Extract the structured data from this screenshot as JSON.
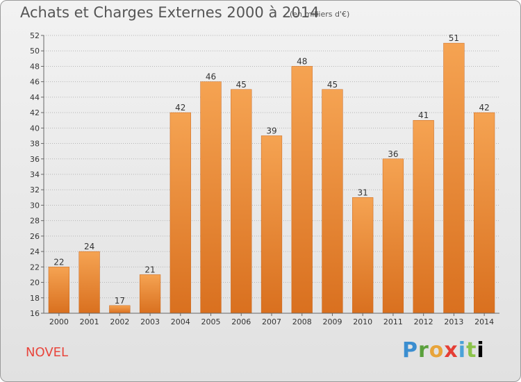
{
  "title": "Achats et Charges Externes 2000 à 2014",
  "unit_note": "(en milliers d'€)",
  "commune": "NOVEL",
  "logo_letters": [
    "P",
    "r",
    "o",
    "x",
    "i",
    "t",
    "i"
  ],
  "chart_data": {
    "type": "bar",
    "categories": [
      "2000",
      "2001",
      "2002",
      "2003",
      "2004",
      "2005",
      "2006",
      "2007",
      "2008",
      "2009",
      "2010",
      "2011",
      "2012",
      "2013",
      "2014"
    ],
    "values": [
      22,
      24,
      17,
      21,
      42,
      46,
      45,
      39,
      48,
      45,
      31,
      36,
      41,
      51,
      42
    ],
    "ylim": [
      16,
      52
    ],
    "yticks": [
      16,
      18,
      20,
      22,
      24,
      26,
      28,
      30,
      32,
      34,
      36,
      38,
      40,
      42,
      44,
      46,
      48,
      50,
      52
    ],
    "grid": true,
    "bar_color_top": "#f5a352",
    "bar_color_bottom": "#d9701f"
  }
}
